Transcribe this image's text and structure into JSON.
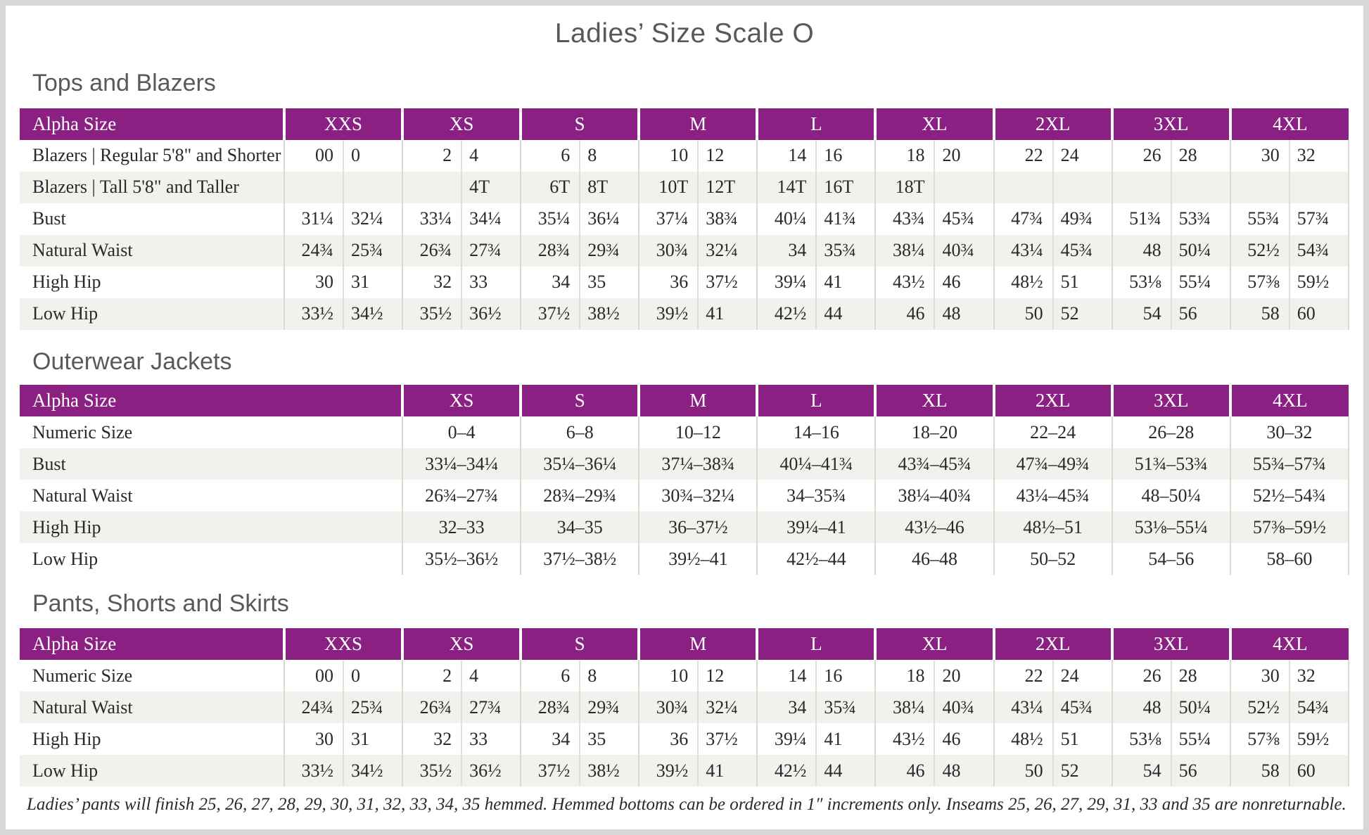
{
  "page": {
    "title": "Ladies’ Size Scale O",
    "footnote": "Ladies’ pants will finish 25, 26, 27, 28, 29, 30, 31, 32, 33, 34, 35 hemmed. Hemmed bottoms can be ordered in 1″ increments only. Inseams 25, 26, 27, 29, 31, 33 and 35 are nonreturnable."
  },
  "colors": {
    "header_purple": "#8a2182",
    "heading_gray": "#58595b",
    "row_stripe": "#f2f1ee",
    "cell_divider": "#dcd8d3",
    "body_text": "#2b2829",
    "page_frame": "#d8d7d6"
  },
  "tables": [
    {
      "id": "tops-and-blazers",
      "heading": "Tops and Blazers",
      "corner_label": "Alpha Size",
      "split_columns": true,
      "sizes": [
        "XXS",
        "XS",
        "S",
        "M",
        "L",
        "XL",
        "2XL",
        "3XL",
        "4XL"
      ],
      "rows": [
        {
          "label": "Blazers  |  Regular 5'8\" and Shorter",
          "values": [
            "00",
            "0",
            "2",
            "4",
            "6",
            "8",
            "10",
            "12",
            "14",
            "16",
            "18",
            "20",
            "22",
            "24",
            "26",
            "28",
            "30",
            "32"
          ]
        },
        {
          "label": "Blazers  |  Tall 5'8\" and Taller",
          "values": [
            "",
            "",
            "",
            "4T",
            "6T",
            "8T",
            "10T",
            "12T",
            "14T",
            "16T",
            "18T",
            "",
            "",
            "",
            "",
            "",
            "",
            ""
          ]
        },
        {
          "label": "Bust",
          "values": [
            "31¼",
            "32¼",
            "33¼",
            "34¼",
            "35¼",
            "36¼",
            "37¼",
            "38¾",
            "40¼",
            "41¾",
            "43¾",
            "45¾",
            "47¾",
            "49¾",
            "51¾",
            "53¾",
            "55¾",
            "57¾"
          ]
        },
        {
          "label": "Natural Waist",
          "values": [
            "24¾",
            "25¾",
            "26¾",
            "27¾",
            "28¾",
            "29¾",
            "30¾",
            "32¼",
            "34",
            "35¾",
            "38¼",
            "40¾",
            "43¼",
            "45¾",
            "48",
            "50¼",
            "52½",
            "54¾"
          ]
        },
        {
          "label": "High Hip",
          "values": [
            "30",
            "31",
            "32",
            "33",
            "34",
            "35",
            "36",
            "37½",
            "39¼",
            "41",
            "43½",
            "46",
            "48½",
            "51",
            "53⅛",
            "55¼",
            "57⅜",
            "59½"
          ]
        },
        {
          "label": "Low Hip",
          "values": [
            "33½",
            "34½",
            "35½",
            "36½",
            "37½",
            "38½",
            "39½",
            "41",
            "42½",
            "44",
            "46",
            "48",
            "50",
            "52",
            "54",
            "56",
            "58",
            "60"
          ]
        }
      ]
    },
    {
      "id": "outerwear-jackets",
      "heading": "Outerwear Jackets",
      "corner_label": "Alpha Size",
      "split_columns": false,
      "sizes": [
        "XS",
        "S",
        "M",
        "L",
        "XL",
        "2XL",
        "3XL",
        "4XL"
      ],
      "rows": [
        {
          "label": "Numeric Size",
          "values": [
            "0–4",
            "6–8",
            "10–12",
            "14–16",
            "18–20",
            "22–24",
            "26–28",
            "30–32"
          ]
        },
        {
          "label": "Bust",
          "values": [
            "33¼–34¼",
            "35¼–36¼",
            "37¼–38¾",
            "40¼–41¾",
            "43¾–45¾",
            "47¾–49¾",
            "51¾–53¾",
            "55¾–57¾"
          ]
        },
        {
          "label": "Natural Waist",
          "values": [
            "26¾–27¾",
            "28¾–29¾",
            "30¾–32¼",
            "34–35¾",
            "38¼–40¾",
            "43¼–45¾",
            "48–50¼",
            "52½–54¾"
          ]
        },
        {
          "label": "High Hip",
          "values": [
            "32–33",
            "34–35",
            "36–37½",
            "39¼–41",
            "43½–46",
            "48½–51",
            "53⅛–55¼",
            "57⅜–59½"
          ]
        },
        {
          "label": "Low Hip",
          "values": [
            "35½–36½",
            "37½–38½",
            "39½–41",
            "42½–44",
            "46–48",
            "50–52",
            "54–56",
            "58–60"
          ]
        }
      ]
    },
    {
      "id": "pants-shorts-and-skirts",
      "heading": "Pants, Shorts and Skirts",
      "corner_label": "Alpha Size",
      "split_columns": true,
      "sizes": [
        "XXS",
        "XS",
        "S",
        "M",
        "L",
        "XL",
        "2XL",
        "3XL",
        "4XL"
      ],
      "rows": [
        {
          "label": "Numeric Size",
          "values": [
            "00",
            "0",
            "2",
            "4",
            "6",
            "8",
            "10",
            "12",
            "14",
            "16",
            "18",
            "20",
            "22",
            "24",
            "26",
            "28",
            "30",
            "32"
          ]
        },
        {
          "label": "Natural Waist",
          "values": [
            "24¾",
            "25¾",
            "26¾",
            "27¾",
            "28¾",
            "29¾",
            "30¾",
            "32¼",
            "34",
            "35¾",
            "38¼",
            "40¾",
            "43¼",
            "45¾",
            "48",
            "50¼",
            "52½",
            "54¾"
          ]
        },
        {
          "label": "High Hip",
          "values": [
            "30",
            "31",
            "32",
            "33",
            "34",
            "35",
            "36",
            "37½",
            "39¼",
            "41",
            "43½",
            "46",
            "48½",
            "51",
            "53⅛",
            "55¼",
            "57⅜",
            "59½"
          ]
        },
        {
          "label": "Low Hip",
          "values": [
            "33½",
            "34½",
            "35½",
            "36½",
            "37½",
            "38½",
            "39½",
            "41",
            "42½",
            "44",
            "46",
            "48",
            "50",
            "52",
            "54",
            "56",
            "58",
            "60"
          ]
        }
      ]
    }
  ]
}
